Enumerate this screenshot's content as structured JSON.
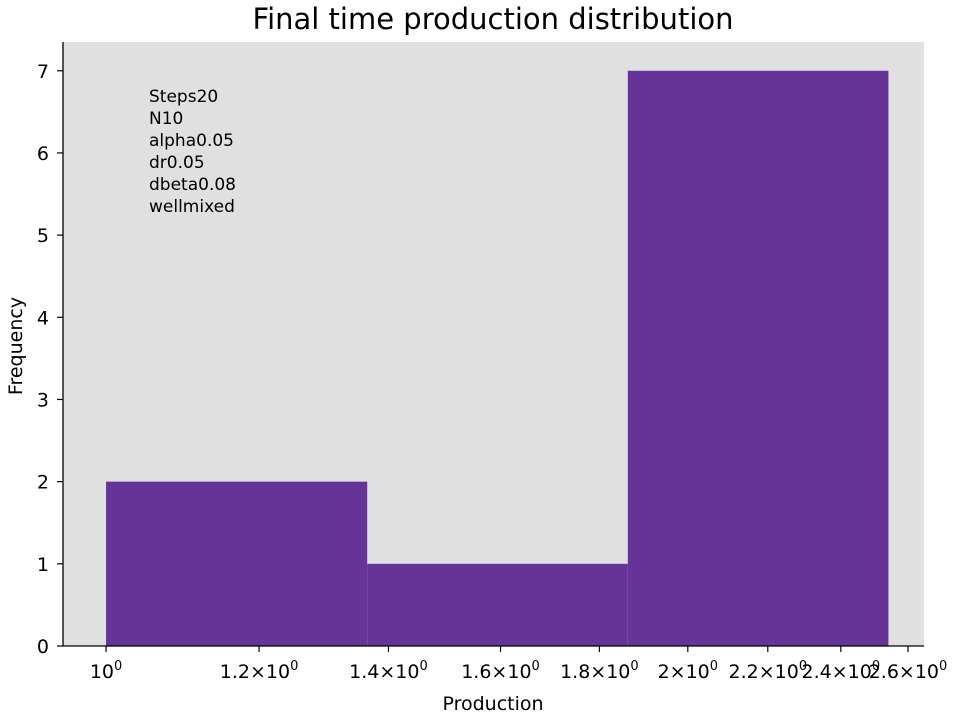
{
  "chart_data": {
    "type": "bar",
    "title": "Final time production distribution",
    "xlabel": "Production",
    "ylabel": "Frequency",
    "x_scale": "log",
    "xlim": [
      0.95,
      2.65
    ],
    "ylim": [
      0,
      7.35
    ],
    "grid": false,
    "background_color": "#e0e0e0",
    "bar_color": "#663399",
    "bins": [
      {
        "x_start": 1.0,
        "x_end": 1.365,
        "value": 2
      },
      {
        "x_start": 1.365,
        "x_end": 1.862,
        "value": 1
      },
      {
        "x_start": 1.862,
        "x_end": 2.54,
        "value": 7
      }
    ],
    "x_ticks": [
      {
        "value": 1.0,
        "mantissa": "",
        "exponent": "0"
      },
      {
        "value": 1.2,
        "mantissa": "1.2",
        "exponent": "0"
      },
      {
        "value": 1.4,
        "mantissa": "1.4",
        "exponent": "0"
      },
      {
        "value": 1.6,
        "mantissa": "1.6",
        "exponent": "0"
      },
      {
        "value": 1.8,
        "mantissa": "1.8",
        "exponent": "0"
      },
      {
        "value": 2.0,
        "mantissa": "2",
        "exponent": "0"
      },
      {
        "value": 2.2,
        "mantissa": "2.2",
        "exponent": "0"
      },
      {
        "value": 2.4,
        "mantissa": "2.4",
        "exponent": "0"
      },
      {
        "value": 2.6,
        "mantissa": "2.6",
        "exponent": "0"
      }
    ],
    "y_ticks": [
      0,
      1,
      2,
      3,
      4,
      5,
      6,
      7
    ],
    "annotation": [
      "Steps20",
      "N10",
      "alpha0.05",
      "dr0.05",
      "dbeta0.08",
      "wellmixed"
    ]
  }
}
